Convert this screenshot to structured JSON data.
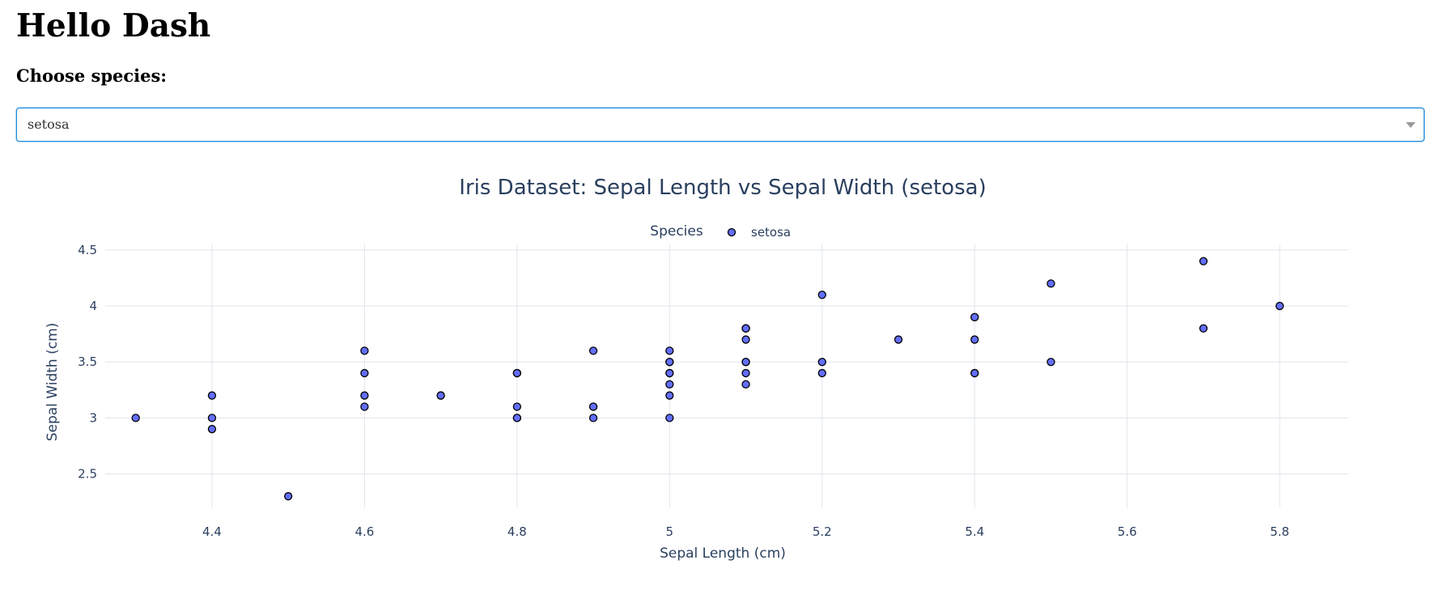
{
  "page": {
    "title": "Hello Dash",
    "dropdown_label": "Choose species:",
    "dropdown_value": "setosa"
  },
  "colors": {
    "marker_fill": "#636efa",
    "marker_stroke": "#000000",
    "grid": "#e1e5ec",
    "axis_text": "#2a3f5f",
    "dropdown_border": "#1c8adb"
  },
  "chart_data": {
    "type": "scatter",
    "title": "Iris Dataset: Sepal Length vs Sepal Width (setosa)",
    "xlabel": "Sepal Length (cm)",
    "ylabel": "Sepal Width (cm)",
    "legend_title": "Species",
    "legend_placement": "top-center",
    "grid": true,
    "xlim": [
      4.26,
      5.89
    ],
    "ylim": [
      2.2,
      4.55
    ],
    "xticks": [
      "4.4",
      "4.6",
      "4.8",
      "5",
      "5.2",
      "5.4",
      "5.6",
      "5.8"
    ],
    "yticks": [
      "2.5",
      "3",
      "3.5",
      "4",
      "4.5"
    ],
    "series": [
      {
        "name": "setosa",
        "x": [
          5.1,
          4.9,
          4.7,
          4.6,
          5.0,
          5.4,
          4.6,
          5.0,
          4.4,
          4.9,
          5.4,
          4.8,
          4.8,
          4.3,
          5.8,
          5.7,
          5.4,
          5.1,
          5.7,
          5.1,
          5.4,
          5.1,
          4.6,
          5.1,
          4.8,
          5.0,
          5.0,
          5.2,
          5.2,
          4.7,
          4.8,
          5.4,
          5.2,
          5.5,
          4.9,
          5.0,
          5.5,
          4.9,
          4.4,
          5.1,
          5.0,
          4.5,
          4.4,
          5.0,
          5.1,
          4.8,
          5.1,
          4.6,
          5.3,
          5.0
        ],
        "y": [
          3.5,
          3.0,
          3.2,
          3.1,
          3.6,
          3.9,
          3.4,
          3.4,
          2.9,
          3.1,
          3.7,
          3.4,
          3.0,
          3.0,
          4.0,
          4.4,
          3.9,
          3.5,
          3.8,
          3.8,
          3.4,
          3.7,
          3.6,
          3.3,
          3.4,
          3.0,
          3.4,
          3.5,
          3.4,
          3.2,
          3.1,
          3.4,
          4.1,
          4.2,
          3.1,
          3.2,
          3.5,
          3.6,
          3.0,
          3.4,
          3.5,
          2.3,
          3.2,
          3.5,
          3.8,
          3.0,
          3.8,
          3.2,
          3.7,
          3.3
        ]
      }
    ]
  }
}
